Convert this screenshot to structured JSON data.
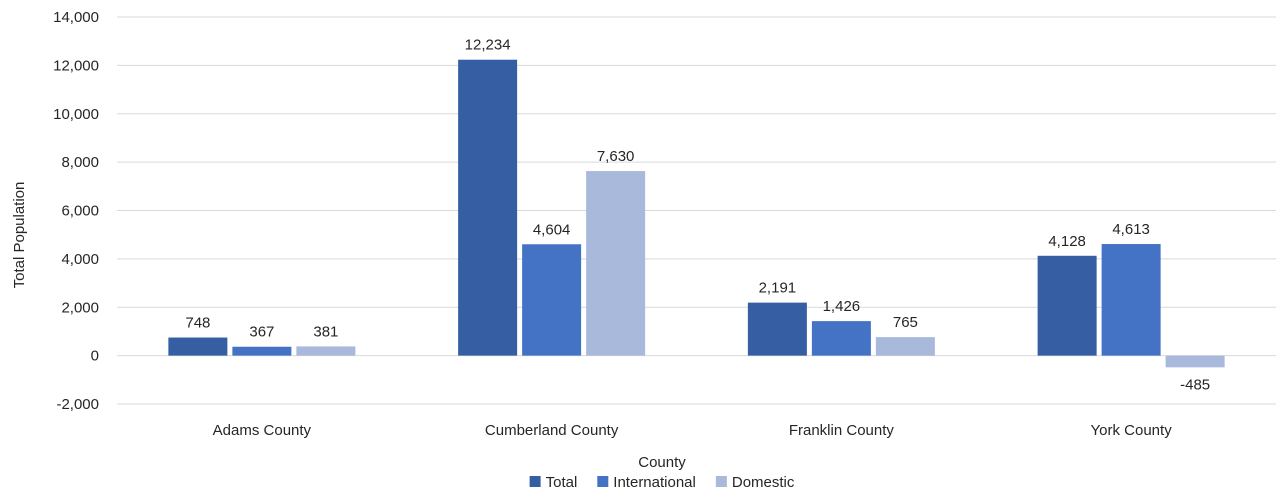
{
  "chart_data": {
    "type": "bar",
    "title": "",
    "xlabel": "County",
    "ylabel": "Total Population",
    "categories": [
      "Adams County",
      "Cumberland County",
      "Franklin County",
      "York County"
    ],
    "series": [
      {
        "name": "Total",
        "color": "#355ea3",
        "values": [
          748,
          12234,
          2191,
          4128
        ]
      },
      {
        "name": "International",
        "color": "#4472c4",
        "values": [
          367,
          4604,
          1426,
          4613
        ]
      },
      {
        "name": "Domestic",
        "color": "#a9b9dc",
        "values": [
          381,
          7630,
          765,
          -485
        ]
      }
    ],
    "ylim": [
      -2000,
      14000
    ],
    "yticks": [
      -2000,
      0,
      2000,
      4000,
      6000,
      8000,
      10000,
      12000,
      14000
    ],
    "ytick_labels": [
      "-2,000",
      "0",
      "2,000",
      "4,000",
      "6,000",
      "8,000",
      "10,000",
      "12,000",
      "14,000"
    ],
    "data_labels": [
      [
        "748",
        "12,234",
        "2,191",
        "4,128"
      ],
      [
        "367",
        "4,604",
        "1,426",
        "4,613"
      ],
      [
        "381",
        "7,630",
        "765",
        "-485"
      ]
    ],
    "grid": true,
    "legend": "bottom-center"
  }
}
